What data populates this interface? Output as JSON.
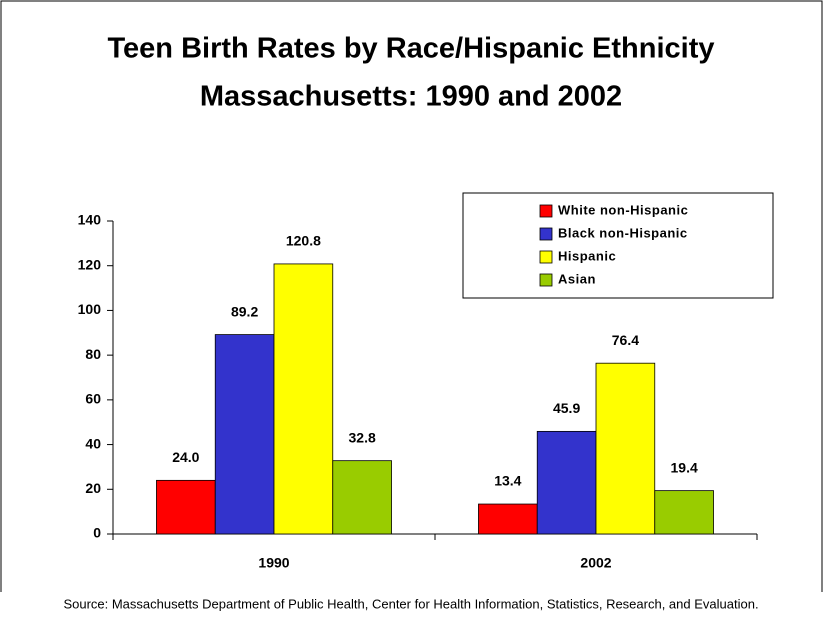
{
  "chart_data": {
    "type": "bar",
    "title": [
      "Teen Birth Rates by Race/Hispanic Ethnicity",
      "Massachusetts: 1990 and 2002"
    ],
    "source": "Source: Massachusetts Department of Public Health, Center for Health Information, Statistics, Research, and Evaluation.",
    "categories": [
      "1990",
      "2002"
    ],
    "series": [
      {
        "name": "White non-Hispanic",
        "color": "#ff0000",
        "values": [
          24,
          13.4
        ],
        "value_labels": [
          "24.0",
          "13.4"
        ]
      },
      {
        "name": "Black non-Hispanic",
        "color": "#3333cc",
        "values": [
          89.2,
          45.9
        ],
        "value_labels": [
          "89.2",
          "45.9"
        ]
      },
      {
        "name": "Hispanic",
        "color": "#ffff00",
        "values": [
          120.8,
          76.4
        ],
        "value_labels": [
          "120.8",
          "76.4"
        ]
      },
      {
        "name": "Asian",
        "color": "#99cc00",
        "values": [
          32.8,
          19.4
        ],
        "value_labels": [
          "32.8",
          "19.4"
        ]
      }
    ],
    "ylim": [
      0,
      140
    ],
    "yticks": [
      0,
      20,
      40,
      60,
      80,
      100,
      120,
      140
    ],
    "legend": "upper right",
    "grid": false
  }
}
